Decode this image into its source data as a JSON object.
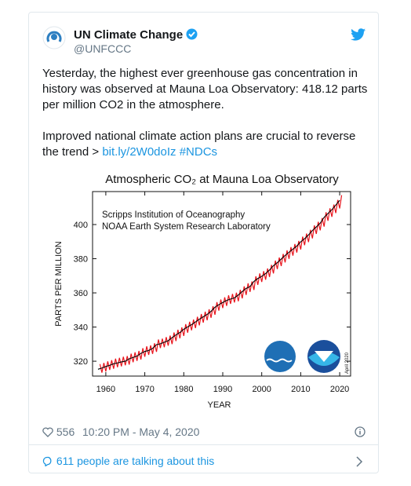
{
  "tweet": {
    "author": "UN Climate Change",
    "handle": "@UNFCCC",
    "text": [
      "Yesterday, the highest ever greenhouse gas concentration in history was observed at Mauna Loa Observatory: 418.12 parts per million CO2 in the atmosphere.",
      "Improved national climate action plans are crucial to reverse the trend >"
    ],
    "link": "bit.ly/2W0doIz",
    "hashtag": "#NDCs",
    "likes": "556",
    "time": "10:20 PM - May 4, 2020",
    "talking": "611 people are talking about this"
  },
  "chart_data": {
    "type": "line",
    "title": "Atmospheric CO₂ at Mauna Loa Observatory",
    "annotations": [
      "Scripps Institution of Oceanography",
      "NOAA Earth System Research Laboratory",
      "April 2020"
    ],
    "xlabel": "YEAR",
    "ylabel": "PARTS PER MILLION",
    "xlim": [
      1956.6,
      2022.8
    ],
    "ylim": [
      311.3,
      419.3
    ],
    "xticks": [
      1960,
      1970,
      1980,
      1990,
      2000,
      2010,
      2020
    ],
    "yticks": [
      320,
      340,
      360,
      380,
      400
    ],
    "series": [
      {
        "color": "#e8141c",
        "x": [
          1958.5,
          1959,
          1959.5,
          1960,
          1960.5,
          1961,
          1961.5,
          1962,
          1962.5,
          1963,
          1963.5,
          1964,
          1964.5,
          1965,
          1965.5,
          1966,
          1966.5,
          1967,
          1967.5,
          1968,
          1968.5,
          1969,
          1969.5,
          1970,
          1970.5,
          1971,
          1971.5,
          1972,
          1972.5,
          1973,
          1973.5,
          1974,
          1974.5,
          1975,
          1975.5,
          1976,
          1976.5,
          1977,
          1977.5,
          1978,
          1978.5,
          1979,
          1979.5,
          1980,
          1980.5,
          1981,
          1981.5,
          1982,
          1982.5,
          1983,
          1983.5,
          1984,
          1984.5,
          1985,
          1985.5,
          1986,
          1986.5,
          1987,
          1987.5,
          1988,
          1988.5,
          1989,
          1989.5,
          1990,
          1990.5,
          1991,
          1991.5,
          1992,
          1992.5,
          1993,
          1993.5,
          1994,
          1994.5,
          1995,
          1995.5,
          1996,
          1996.5,
          1997,
          1997.5,
          1998,
          1998.5,
          1999,
          1999.5,
          2000,
          2000.5,
          2001,
          2001.5,
          2002,
          2002.5,
          2003,
          2003.5,
          2004,
          2004.5,
          2005,
          2005.5,
          2006,
          2006.5,
          2007,
          2007.5,
          2008,
          2008.5,
          2009,
          2009.5,
          2010,
          2010.5,
          2011,
          2011.5,
          2012,
          2012.5,
          2013,
          2013.5,
          2014,
          2014.5,
          2015,
          2015.5,
          2016,
          2016.5,
          2017,
          2017.5,
          2018,
          2018.5,
          2019,
          2019.5,
          2020,
          2020.5
        ],
        "values": [
          318.3,
          313.3,
          319.0,
          314.0,
          319.9,
          314.9,
          320.6,
          315.6,
          321.5,
          316.5,
          322.0,
          317.0,
          322.6,
          317.6,
          323.0,
          318.0,
          324.4,
          319.4,
          325.2,
          320.2,
          326.0,
          321.0,
          327.6,
          322.6,
          328.7,
          323.7,
          329.3,
          324.3,
          330.5,
          325.5,
          332.7,
          327.7,
          333.2,
          328.2,
          334.1,
          329.1,
          335.0,
          330.0,
          336.8,
          331.8,
          338.4,
          333.4,
          339.8,
          334.8,
          341.7,
          336.7,
          343.1,
          338.1,
          344.4,
          339.4,
          346.0,
          341.0,
          347.6,
          342.6,
          349.0,
          344.0,
          350.4,
          345.4,
          352.2,
          347.2,
          354.6,
          349.6,
          356.1,
          351.1,
          357.4,
          352.4,
          358.6,
          353.6,
          359.4,
          354.4,
          360.1,
          355.1,
          361.8,
          356.8,
          363.8,
          358.8,
          365.6,
          360.6,
          366.7,
          361.7,
          369.7,
          364.7,
          371.4,
          366.4,
          372.7,
          367.7,
          374.3,
          369.3,
          376.4,
          371.4,
          378.9,
          373.9,
          380.7,
          375.7,
          382.8,
          377.8,
          384.9,
          379.9,
          386.8,
          381.8,
          388.6,
          383.6,
          390.4,
          385.4,
          392.9,
          387.9,
          394.7,
          389.7,
          396.9,
          391.9,
          399.5,
          394.5,
          401.6,
          396.6,
          403.8,
          398.8,
          407.2,
          402.2,
          409.5,
          404.5,
          411.7,
          406.7,
          414.4,
          409.4,
          417.2
        ]
      },
      {
        "color": "#000000",
        "x": [
          1958,
          1959,
          1960,
          1961,
          1962,
          1963,
          1964,
          1965,
          1966,
          1967,
          1968,
          1969,
          1970,
          1971,
          1972,
          1973,
          1974,
          1975,
          1976,
          1977,
          1978,
          1979,
          1980,
          1981,
          1982,
          1983,
          1984,
          1985,
          1986,
          1987,
          1988,
          1989,
          1990,
          1991,
          1992,
          1993,
          1994,
          1995,
          1996,
          1997,
          1998,
          1999,
          2000,
          2001,
          2002,
          2003,
          2004,
          2005,
          2006,
          2007,
          2008,
          2009,
          2010,
          2011,
          2012,
          2013,
          2014,
          2015,
          2016,
          2017,
          2018,
          2019,
          2020
        ],
        "values": [
          315.3,
          316.0,
          316.9,
          317.6,
          318.5,
          319.0,
          319.6,
          320.0,
          321.4,
          322.2,
          323.0,
          324.6,
          325.7,
          326.3,
          327.5,
          329.7,
          330.2,
          331.1,
          332.0,
          333.8,
          335.4,
          336.8,
          338.7,
          340.1,
          341.4,
          343.0,
          344.6,
          346.0,
          347.4,
          349.2,
          351.6,
          353.1,
          354.4,
          355.6,
          356.4,
          357.1,
          358.8,
          360.8,
          362.6,
          363.7,
          366.7,
          368.4,
          369.7,
          371.3,
          373.4,
          375.9,
          377.7,
          379.8,
          381.9,
          383.8,
          385.6,
          387.4,
          389.9,
          391.7,
          393.9,
          396.5,
          398.6,
          400.8,
          404.2,
          406.5,
          408.7,
          411.4,
          414.2
        ]
      }
    ]
  }
}
